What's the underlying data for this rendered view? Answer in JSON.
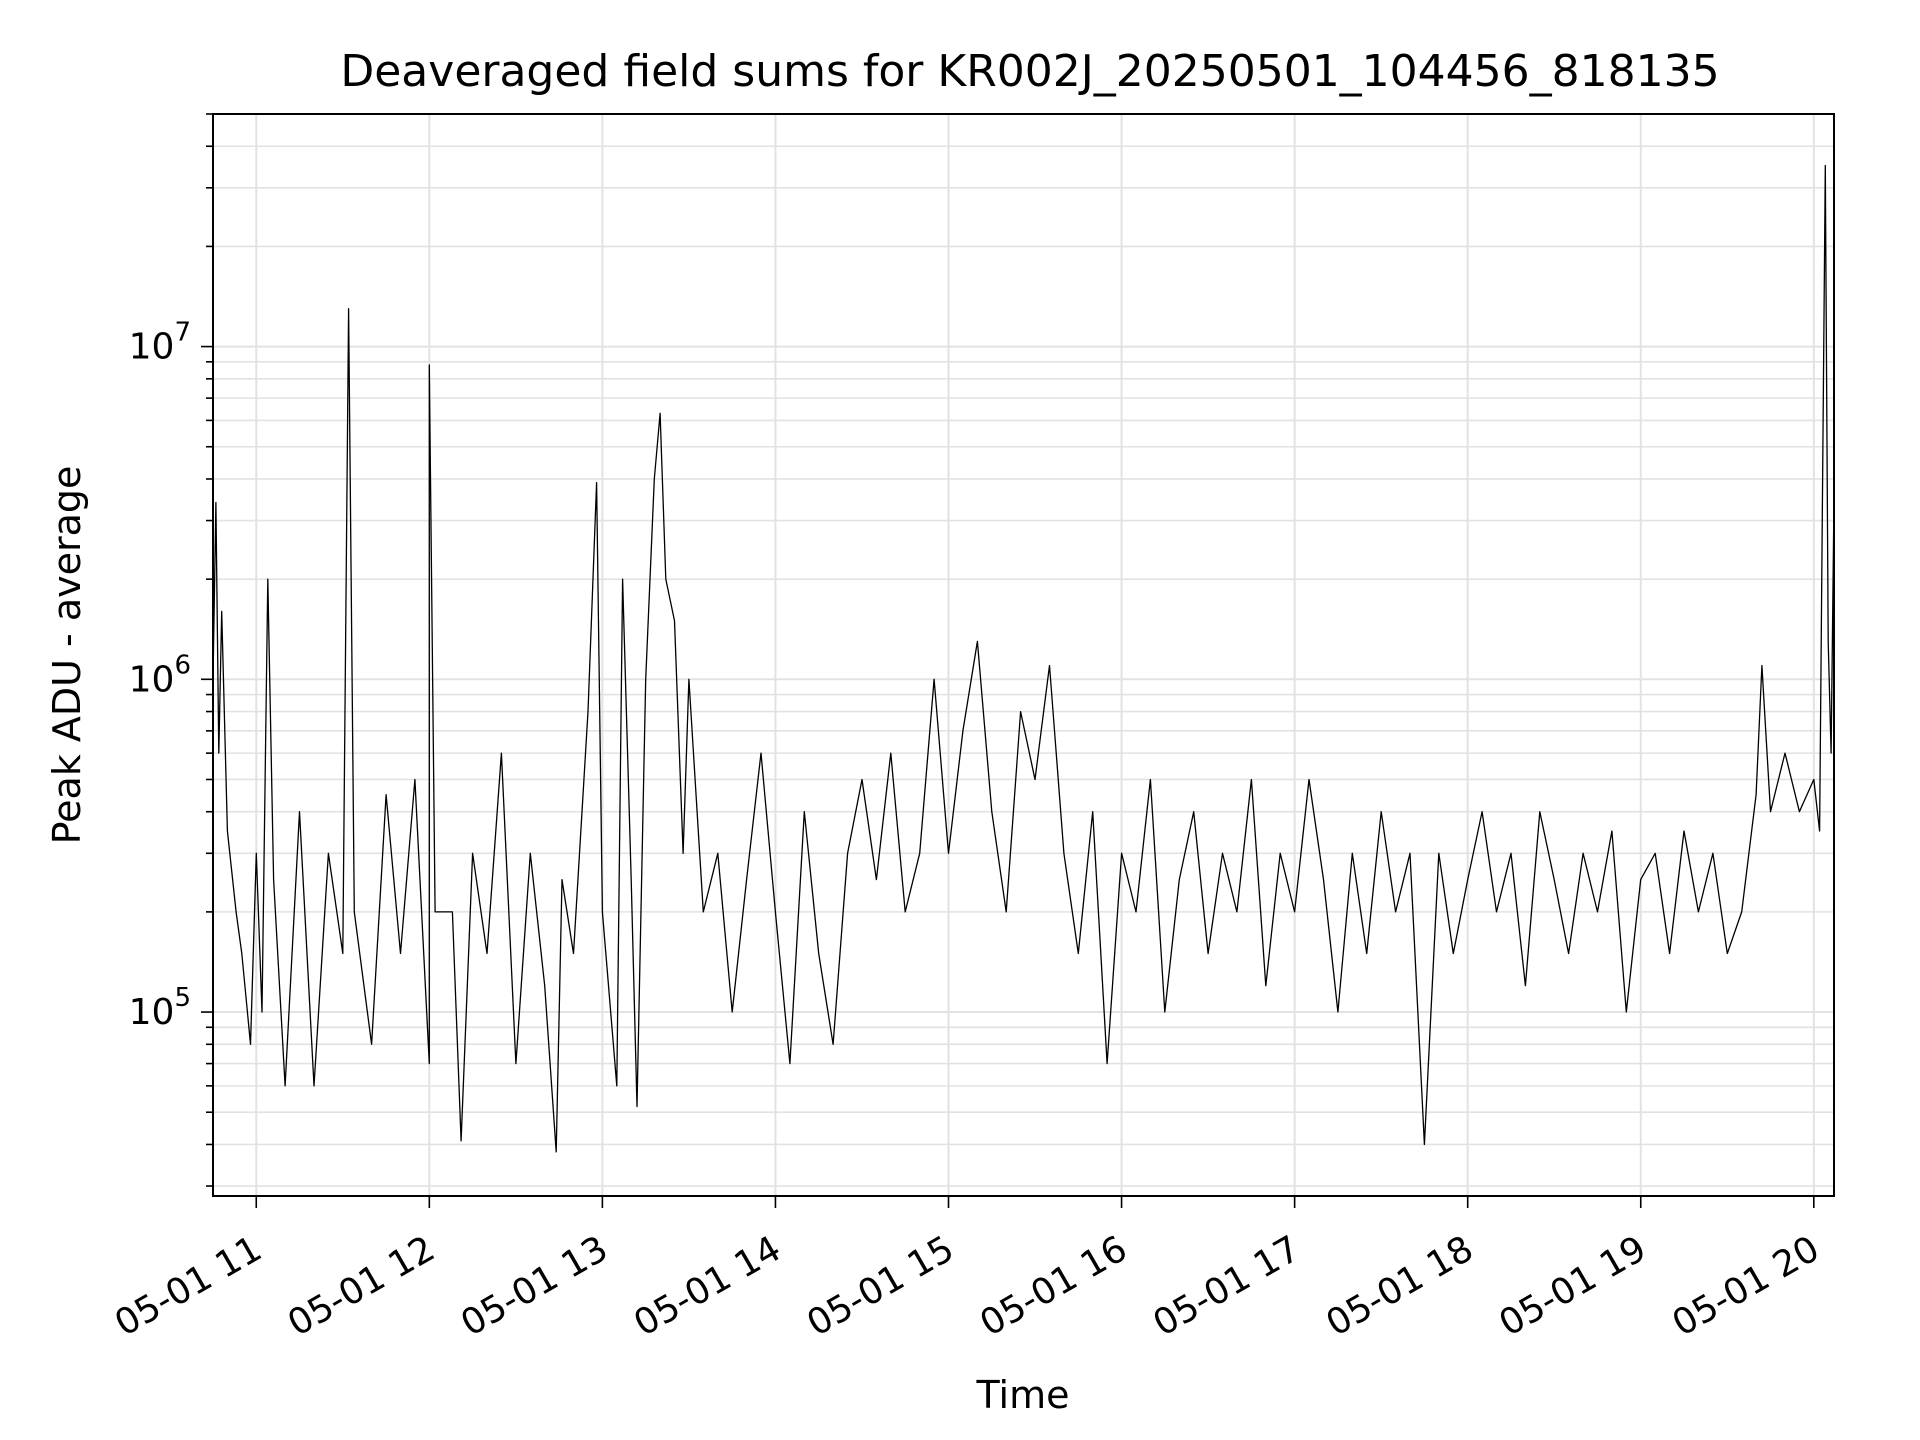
{
  "chart_data": {
    "type": "line",
    "title": "Deaveraged field sums for KR002J_20250501_104456_818135",
    "xlabel": "Time",
    "ylabel": "Peak ADU - average",
    "yscale": "log",
    "xlim": [
      "2025-05-01 10:45",
      "2025-05-01 20:07"
    ],
    "ylim": [
      28000,
      50000000
    ],
    "grid": true,
    "x_tick_labels": [
      "05-01 11",
      "05-01 12",
      "05-01 13",
      "05-01 14",
      "05-01 15",
      "05-01 16",
      "05-01 17",
      "05-01 18",
      "05-01 19",
      "05-01 20"
    ],
    "y_tick_labels": [
      {
        "base": "10",
        "exp": "5",
        "value": 100000
      },
      {
        "base": "10",
        "exp": "6",
        "value": 1000000
      },
      {
        "base": "10",
        "exp": "7",
        "value": 10000000
      }
    ],
    "line_color": "#000000",
    "series": [
      {
        "points": [
          [
            "2025-05-01 10:45",
            1000000
          ],
          [
            "2025-05-01 10:46",
            3400000
          ],
          [
            "2025-05-01 10:47",
            600000
          ],
          [
            "2025-05-01 10:48",
            1600000
          ],
          [
            "2025-05-01 10:50",
            350000
          ],
          [
            "2025-05-01 10:53",
            200000
          ],
          [
            "2025-05-01 10:55",
            150000
          ],
          [
            "2025-05-01 10:58",
            80000
          ],
          [
            "2025-05-01 11:00",
            300000
          ],
          [
            "2025-05-01 11:02",
            100000
          ],
          [
            "2025-05-01 11:04",
            2000000
          ],
          [
            "2025-05-01 11:06",
            250000
          ],
          [
            "2025-05-01 11:10",
            60000
          ],
          [
            "2025-05-01 11:15",
            400000
          ],
          [
            "2025-05-01 11:20",
            60000
          ],
          [
            "2025-05-01 11:25",
            300000
          ],
          [
            "2025-05-01 11:30",
            150000
          ],
          [
            "2025-05-01 11:32",
            13000000
          ],
          [
            "2025-05-01 11:34",
            200000
          ],
          [
            "2025-05-01 11:40",
            80000
          ],
          [
            "2025-05-01 11:45",
            450000
          ],
          [
            "2025-05-01 11:50",
            150000
          ],
          [
            "2025-05-01 11:55",
            500000
          ],
          [
            "2025-05-01 12:00",
            70000
          ],
          [
            "2025-05-01 12:00",
            8800000
          ],
          [
            "2025-05-01 12:02",
            200000
          ],
          [
            "2025-05-01 12:08",
            200000
          ],
          [
            "2025-05-01 12:11",
            41000
          ],
          [
            "2025-05-01 12:15",
            300000
          ],
          [
            "2025-05-01 12:20",
            150000
          ],
          [
            "2025-05-01 12:25",
            600000
          ],
          [
            "2025-05-01 12:30",
            70000
          ],
          [
            "2025-05-01 12:35",
            300000
          ],
          [
            "2025-05-01 12:40",
            120000
          ],
          [
            "2025-05-01 12:44",
            38000
          ],
          [
            "2025-05-01 12:46",
            250000
          ],
          [
            "2025-05-01 12:50",
            150000
          ],
          [
            "2025-05-01 12:55",
            800000
          ],
          [
            "2025-05-01 12:58",
            3900000
          ],
          [
            "2025-05-01 13:00",
            200000
          ],
          [
            "2025-05-01 13:05",
            60000
          ],
          [
            "2025-05-01 13:07",
            2000000
          ],
          [
            "2025-05-01 13:10",
            250000
          ],
          [
            "2025-05-01 13:12",
            52000
          ],
          [
            "2025-05-01 13:15",
            1000000
          ],
          [
            "2025-05-01 13:18",
            4000000
          ],
          [
            "2025-05-01 13:20",
            6300000
          ],
          [
            "2025-05-01 13:22",
            2000000
          ],
          [
            "2025-05-01 13:25",
            1500000
          ],
          [
            "2025-05-01 13:28",
            300000
          ],
          [
            "2025-05-01 13:30",
            1000000
          ],
          [
            "2025-05-01 13:35",
            200000
          ],
          [
            "2025-05-01 13:40",
            300000
          ],
          [
            "2025-05-01 13:45",
            100000
          ],
          [
            "2025-05-01 13:50",
            250000
          ],
          [
            "2025-05-01 13:55",
            600000
          ],
          [
            "2025-05-01 14:00",
            200000
          ],
          [
            "2025-05-01 14:05",
            70000
          ],
          [
            "2025-05-01 14:10",
            400000
          ],
          [
            "2025-05-01 14:15",
            150000
          ],
          [
            "2025-05-01 14:20",
            80000
          ],
          [
            "2025-05-01 14:25",
            300000
          ],
          [
            "2025-05-01 14:30",
            500000
          ],
          [
            "2025-05-01 14:35",
            250000
          ],
          [
            "2025-05-01 14:40",
            600000
          ],
          [
            "2025-05-01 14:45",
            200000
          ],
          [
            "2025-05-01 14:50",
            300000
          ],
          [
            "2025-05-01 14:55",
            1000000
          ],
          [
            "2025-05-01 15:00",
            300000
          ],
          [
            "2025-05-01 15:05",
            700000
          ],
          [
            "2025-05-01 15:10",
            1300000
          ],
          [
            "2025-05-01 15:15",
            400000
          ],
          [
            "2025-05-01 15:20",
            200000
          ],
          [
            "2025-05-01 15:25",
            800000
          ],
          [
            "2025-05-01 15:30",
            500000
          ],
          [
            "2025-05-01 15:35",
            1100000
          ],
          [
            "2025-05-01 15:40",
            300000
          ],
          [
            "2025-05-01 15:45",
            150000
          ],
          [
            "2025-05-01 15:50",
            400000
          ],
          [
            "2025-05-01 15:55",
            70000
          ],
          [
            "2025-05-01 16:00",
            300000
          ],
          [
            "2025-05-01 16:05",
            200000
          ],
          [
            "2025-05-01 16:10",
            500000
          ],
          [
            "2025-05-01 16:15",
            100000
          ],
          [
            "2025-05-01 16:20",
            250000
          ],
          [
            "2025-05-01 16:25",
            400000
          ],
          [
            "2025-05-01 16:30",
            150000
          ],
          [
            "2025-05-01 16:35",
            300000
          ],
          [
            "2025-05-01 16:40",
            200000
          ],
          [
            "2025-05-01 16:45",
            500000
          ],
          [
            "2025-05-01 16:50",
            120000
          ],
          [
            "2025-05-01 16:55",
            300000
          ],
          [
            "2025-05-01 17:00",
            200000
          ],
          [
            "2025-05-01 17:05",
            500000
          ],
          [
            "2025-05-01 17:10",
            250000
          ],
          [
            "2025-05-01 17:15",
            100000
          ],
          [
            "2025-05-01 17:20",
            300000
          ],
          [
            "2025-05-01 17:25",
            150000
          ],
          [
            "2025-05-01 17:30",
            400000
          ],
          [
            "2025-05-01 17:35",
            200000
          ],
          [
            "2025-05-01 17:40",
            300000
          ],
          [
            "2025-05-01 17:45",
            40000
          ],
          [
            "2025-05-01 17:50",
            300000
          ],
          [
            "2025-05-01 17:55",
            150000
          ],
          [
            "2025-05-01 18:00",
            250000
          ],
          [
            "2025-05-01 18:05",
            400000
          ],
          [
            "2025-05-01 18:10",
            200000
          ],
          [
            "2025-05-01 18:15",
            300000
          ],
          [
            "2025-05-01 18:20",
            120000
          ],
          [
            "2025-05-01 18:25",
            400000
          ],
          [
            "2025-05-01 18:30",
            250000
          ],
          [
            "2025-05-01 18:35",
            150000
          ],
          [
            "2025-05-01 18:40",
            300000
          ],
          [
            "2025-05-01 18:45",
            200000
          ],
          [
            "2025-05-01 18:50",
            350000
          ],
          [
            "2025-05-01 18:55",
            100000
          ],
          [
            "2025-05-01 19:00",
            250000
          ],
          [
            "2025-05-01 19:05",
            300000
          ],
          [
            "2025-05-01 19:10",
            150000
          ],
          [
            "2025-05-01 19:15",
            350000
          ],
          [
            "2025-05-01 19:20",
            200000
          ],
          [
            "2025-05-01 19:25",
            300000
          ],
          [
            "2025-05-01 19:30",
            150000
          ],
          [
            "2025-05-01 19:35",
            200000
          ],
          [
            "2025-05-01 19:40",
            450000
          ],
          [
            "2025-05-01 19:42",
            1100000
          ],
          [
            "2025-05-01 19:45",
            400000
          ],
          [
            "2025-05-01 19:50",
            600000
          ],
          [
            "2025-05-01 19:55",
            400000
          ],
          [
            "2025-05-01 20:00",
            500000
          ],
          [
            "2025-05-01 20:02",
            350000
          ],
          [
            "2025-05-01 20:04",
            35000000
          ],
          [
            "2025-05-01 20:05",
            1300000
          ],
          [
            "2025-05-01 20:06",
            600000
          ],
          [
            "2025-05-01 20:07",
            3500000
          ]
        ]
      }
    ]
  }
}
